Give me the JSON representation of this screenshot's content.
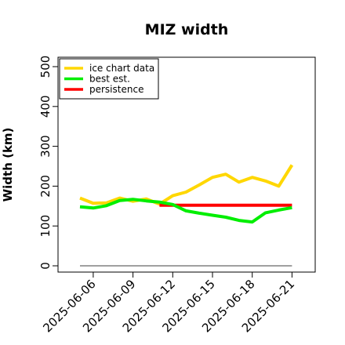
{
  "chart_data": {
    "type": "line",
    "title": "MIZ width",
    "xlabel": "",
    "ylabel": "Width (km)",
    "ylim": [
      0,
      500
    ],
    "yticks": [
      0,
      100,
      200,
      300,
      400,
      500
    ],
    "xticks": [
      "2025-06-06",
      "2025-06-09",
      "2025-06-12",
      "2025-06-15",
      "2025-06-18",
      "2025-06-21"
    ],
    "x": [
      "2025-06-05",
      "2025-06-06",
      "2025-06-07",
      "2025-06-08",
      "2025-06-09",
      "2025-06-10",
      "2025-06-11",
      "2025-06-12",
      "2025-06-13",
      "2025-06-14",
      "2025-06-15",
      "2025-06-16",
      "2025-06-17",
      "2025-06-18",
      "2025-06-19",
      "2025-06-20",
      "2025-06-21"
    ],
    "series": [
      {
        "name": "ice chart data",
        "color": "#ffd700",
        "x": [
          "2025-06-05",
          "2025-06-06",
          "2025-06-07",
          "2025-06-08",
          "2025-06-09",
          "2025-06-10",
          "2025-06-11",
          "2025-06-12",
          "2025-06-13",
          "2025-06-14",
          "2025-06-15",
          "2025-06-16",
          "2025-06-17",
          "2025-06-18",
          "2025-06-19",
          "2025-06-20",
          "2025-06-21"
        ],
        "values": [
          170,
          157,
          158,
          170,
          162,
          168,
          155,
          176,
          185,
          203,
          222,
          230,
          210,
          222,
          213,
          200,
          253
        ]
      },
      {
        "name": "best est.",
        "color": "#00ee00",
        "x": [
          "2025-06-05",
          "2025-06-06",
          "2025-06-07",
          "2025-06-08",
          "2025-06-09",
          "2025-06-10",
          "2025-06-11",
          "2025-06-12",
          "2025-06-13",
          "2025-06-14",
          "2025-06-15",
          "2025-06-16",
          "2025-06-17",
          "2025-06-18",
          "2025-06-19",
          "2025-06-20",
          "2025-06-21"
        ],
        "values": [
          148,
          145,
          151,
          164,
          167,
          163,
          160,
          154,
          138,
          132,
          127,
          122,
          114,
          110,
          133,
          140,
          146
        ]
      },
      {
        "name": "persistence",
        "color": "#ff0000",
        "x": [
          "2025-06-11",
          "2025-06-21"
        ],
        "values": [
          152,
          152
        ]
      }
    ],
    "reference_line": {
      "value": 0,
      "color": "#808080",
      "x": [
        "2025-06-05",
        "2025-06-21"
      ]
    },
    "legend": "top-left",
    "grid": false
  }
}
